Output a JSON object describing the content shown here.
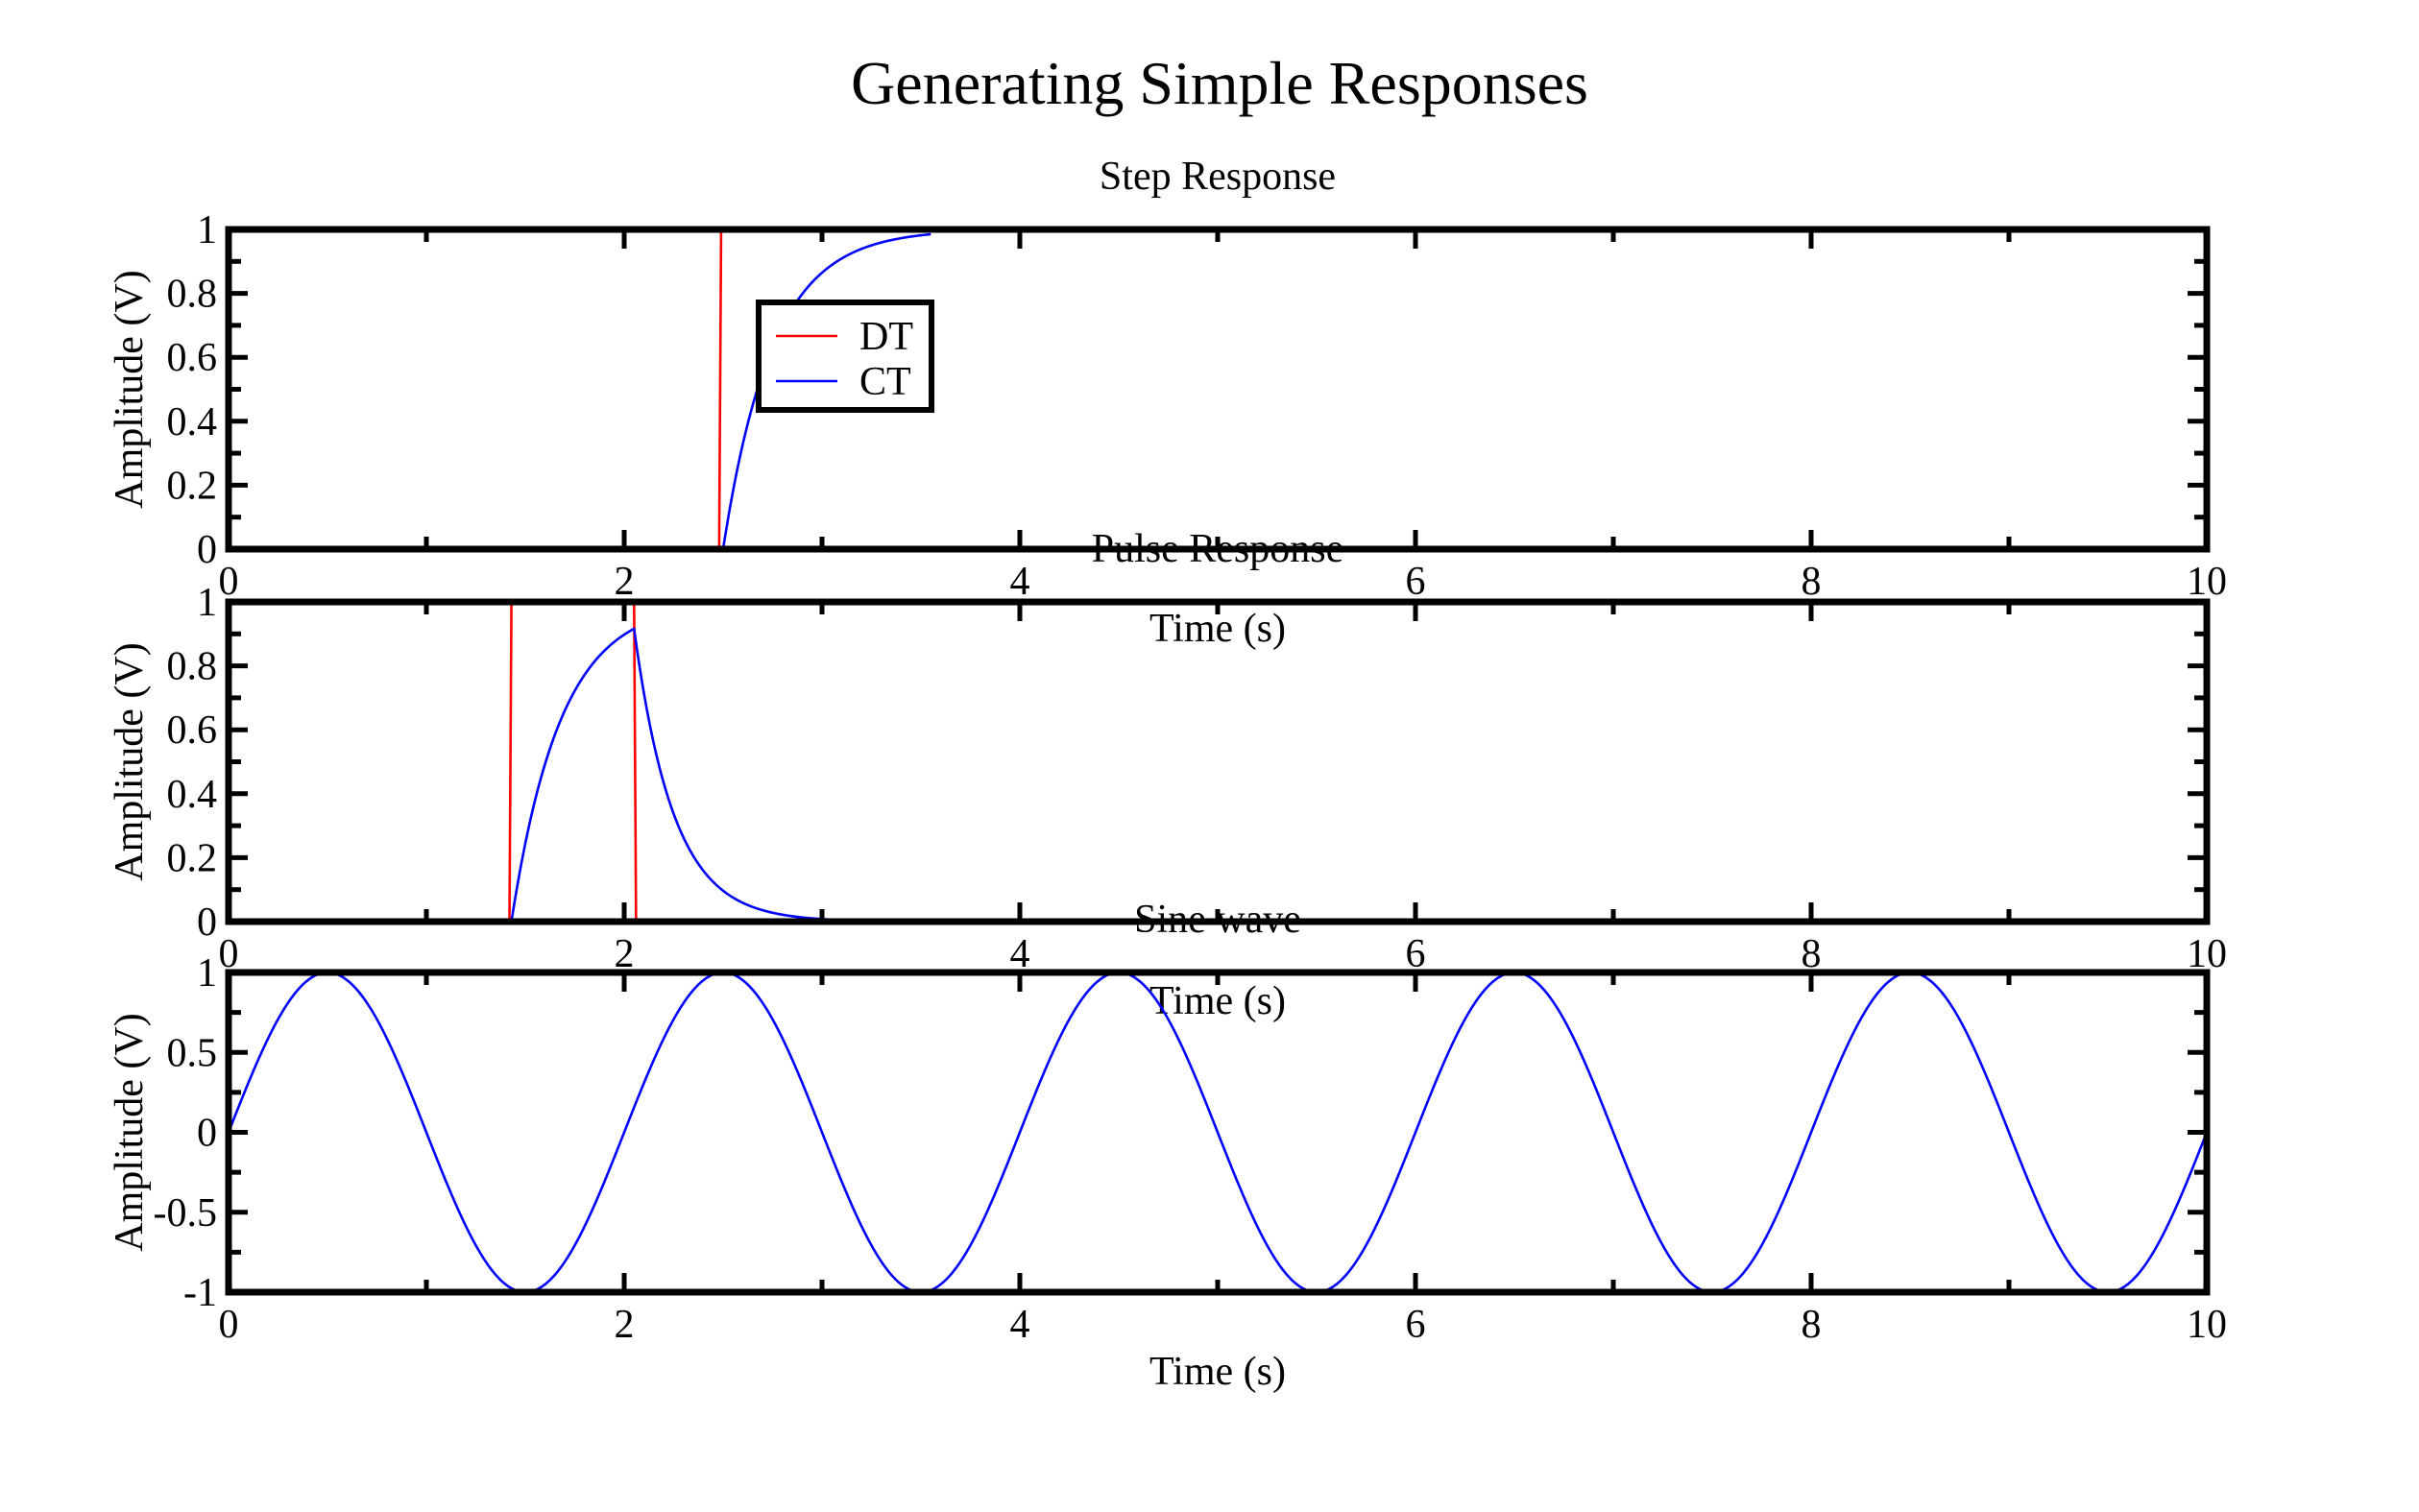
{
  "figure": {
    "title": "Generating Simple Responses"
  },
  "colors": {
    "dt": "#ff0000",
    "ct": "#0000ff",
    "sine": "#0000ff",
    "axes": "#000000",
    "background": "#ffffff"
  },
  "chart_data": [
    {
      "type": "line",
      "title": "Step Response",
      "xlabel": "Time (s)",
      "ylabel": "Amplitude (V)",
      "xlim": [
        0,
        10
      ],
      "ylim": [
        0,
        1
      ],
      "xticks": [
        0,
        2,
        4,
        6,
        8,
        10
      ],
      "xtick_labels": [
        "0",
        "2",
        "4",
        "6",
        "8",
        "10"
      ],
      "yticks": [
        0,
        0.2,
        0.4,
        0.6,
        0.8,
        1
      ],
      "ytick_labels": [
        "0",
        "0.2",
        "0.4",
        "0.6",
        "0.8",
        "1"
      ],
      "grid": false,
      "legend": {
        "placement": "upper-left-center",
        "entries": [
          "DT",
          "CT"
        ]
      },
      "series": [
        {
          "name": "DT",
          "color": "#ff0000",
          "kind": "step",
          "x": [
            0,
            2.48,
            2.49,
            3.55
          ],
          "y": [
            0,
            0,
            1,
            1
          ]
        },
        {
          "name": "CT",
          "color": "#0000ff",
          "kind": "rise",
          "t0": 2.5,
          "tau": 0.25,
          "x_end": 3.55
        }
      ]
    },
    {
      "type": "line",
      "title": "Pulse Response",
      "xlabel": "Time (s)",
      "ylabel": "Amplitude (V)",
      "xlim": [
        0,
        10
      ],
      "ylim": [
        0,
        1
      ],
      "xticks": [
        0,
        2,
        4,
        6,
        8,
        10
      ],
      "xtick_labels": [
        "0",
        "2",
        "4",
        "6",
        "8",
        "10"
      ],
      "yticks": [
        0,
        0.2,
        0.4,
        0.6,
        0.8,
        1
      ],
      "ytick_labels": [
        "0",
        "0.2",
        "0.4",
        "0.6",
        "0.8",
        "1"
      ],
      "grid": false,
      "series": [
        {
          "color": "#ff0000",
          "kind": "step",
          "x": [
            0,
            1.42,
            1.43,
            2.05,
            2.06,
            3.2
          ],
          "y": [
            0,
            0,
            1,
            1,
            0,
            0
          ]
        },
        {
          "color": "#0000ff",
          "kind": "pulse",
          "t_on": 1.43,
          "t_off": 2.05,
          "tau_rise": 0.25,
          "tau_fall": 0.2,
          "x_end": 3.1
        }
      ]
    },
    {
      "type": "line",
      "title": "Sine wave",
      "xlabel": "Time (s)",
      "ylabel": "Amplitude (V)",
      "xlim": [
        0,
        10
      ],
      "ylim": [
        -1,
        1
      ],
      "xticks": [
        0,
        2,
        4,
        6,
        8,
        10
      ],
      "xtick_labels": [
        "0",
        "2",
        "4",
        "6",
        "8",
        "10"
      ],
      "yticks": [
        -1,
        -0.5,
        0,
        0.5,
        1
      ],
      "ytick_labels": [
        "-1",
        "-0.5",
        "0",
        "0.5",
        "1"
      ],
      "grid": false,
      "series": [
        {
          "color": "#0000ff",
          "kind": "sine",
          "amplitude": 1,
          "frequency_hz": 0.5,
          "x": [
            0,
            0.5,
            1,
            1.5,
            2,
            2.5,
            3,
            3.5,
            4,
            4.5,
            5,
            5.5,
            6,
            6.5,
            7,
            7.5,
            8,
            8.5,
            9,
            9.5,
            10
          ],
          "y": [
            0,
            1,
            0,
            -1,
            0,
            1,
            0,
            -1,
            0,
            1,
            0,
            -1,
            0,
            1,
            0,
            -1,
            0,
            1,
            0,
            -1,
            0
          ]
        }
      ]
    }
  ]
}
